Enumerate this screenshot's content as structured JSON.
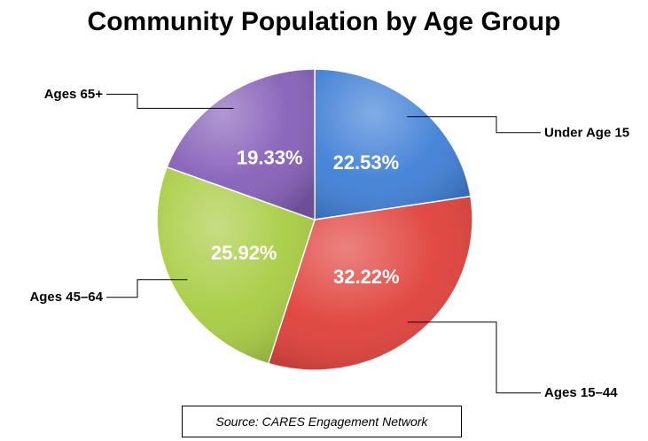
{
  "chart_data": {
    "type": "pie",
    "title": "Community Population by Age Group",
    "categories": [
      "Under Age 15",
      "Ages 15–44",
      "Ages 45–64",
      "Ages 65+"
    ],
    "values": [
      22.53,
      32.22,
      25.92,
      19.33
    ],
    "value_labels": [
      "22.53%",
      "32.22%",
      "25.92%",
      "19.33%"
    ],
    "colors": [
      "#3f7fd6",
      "#e0403a",
      "#a8cc42",
      "#8660b8"
    ],
    "start_angle": "12 o'clock",
    "direction": "clockwise",
    "legend": "none (leader-line labels)"
  },
  "source": "Source:  CARES Engagement Network"
}
